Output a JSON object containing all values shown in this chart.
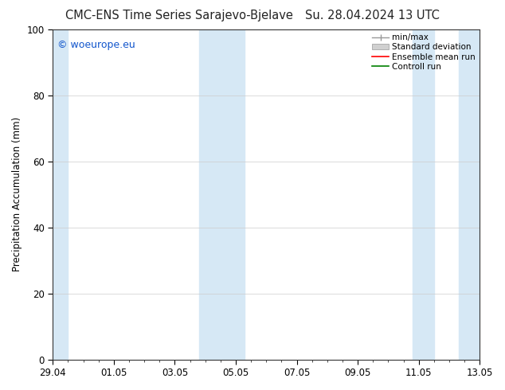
{
  "title_left": "CMC-ENS Time Series Sarajevo-Bjelave",
  "title_right": "Su. 28.04.2024 13 UTC",
  "ylabel": "Precipitation Accumulation (mm)",
  "watermark": "© woeurope.eu",
  "ylim": [
    0,
    100
  ],
  "yticks": [
    0,
    20,
    40,
    60,
    80,
    100
  ],
  "xtick_labels": [
    "29.04",
    "01.05",
    "03.05",
    "05.05",
    "07.05",
    "09.05",
    "11.05",
    "13.05"
  ],
  "x_ticks": [
    0,
    2,
    4,
    6,
    8,
    10,
    12,
    14
  ],
  "xlim": [
    0,
    14
  ],
  "background_color": "#ffffff",
  "plot_bg_color": "#ffffff",
  "shade_color": "#d6e8f5",
  "shaded_bands": [
    [
      0.0,
      0.5
    ],
    [
      4.8,
      6.3
    ],
    [
      11.8,
      12.5
    ],
    [
      13.3,
      14.0
    ]
  ],
  "legend_labels": [
    "min/max",
    "Standard deviation",
    "Ensemble mean run",
    "Controll run"
  ],
  "legend_line_colors": [
    "#aaaaaa",
    "#cccccc",
    "#ff0000",
    "#008000"
  ],
  "title_fontsize": 10.5,
  "axis_fontsize": 8.5,
  "tick_fontsize": 8.5,
  "watermark_color": "#1155cc",
  "watermark_fontsize": 9
}
